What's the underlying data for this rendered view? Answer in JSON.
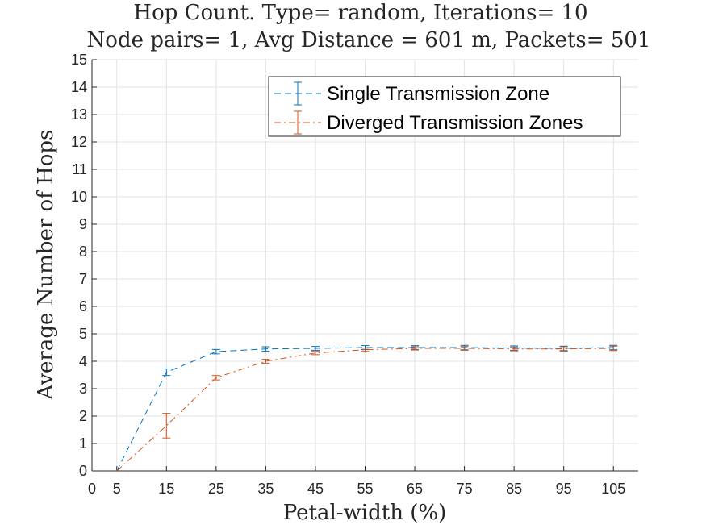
{
  "chart_data": {
    "type": "line",
    "title": [
      "Hop Count. Type= random, Iterations= 10",
      "Node pairs= 1, Avg Distance = 601 m, Packets= 501"
    ],
    "xlabel": "Petal-width (%)",
    "ylabel": "Average Number of Hops",
    "xlim": [
      0,
      110
    ],
    "ylim": [
      0,
      15
    ],
    "xticks": [
      0,
      5,
      15,
      25,
      35,
      45,
      55,
      65,
      75,
      85,
      95,
      105
    ],
    "yticks": [
      0,
      1,
      2,
      3,
      4,
      5,
      6,
      7,
      8,
      9,
      10,
      11,
      12,
      13,
      14,
      15
    ],
    "grid": true,
    "legend_position": "top-right",
    "x": [
      5,
      15,
      25,
      35,
      45,
      55,
      65,
      75,
      85,
      95,
      105
    ],
    "series": [
      {
        "name": "Single Transmission Zone",
        "color": "#0072BD",
        "line_style": "dashed",
        "values": [
          0,
          3.6,
          4.35,
          4.45,
          4.47,
          4.5,
          4.5,
          4.5,
          4.48,
          4.47,
          4.5
        ],
        "error": [
          0,
          0.12,
          0.08,
          0.08,
          0.07,
          0.07,
          0.07,
          0.08,
          0.08,
          0.08,
          0.08
        ]
      },
      {
        "name": "Diverged Transmission Zones",
        "color": "#D95319",
        "line_style": "dash-dot",
        "values": [
          0,
          1.65,
          3.4,
          4.0,
          4.3,
          4.42,
          4.47,
          4.47,
          4.45,
          4.45,
          4.47
        ],
        "error": [
          0,
          0.45,
          0.08,
          0.07,
          0.06,
          0.06,
          0.06,
          0.07,
          0.07,
          0.08,
          0.08
        ]
      }
    ]
  }
}
